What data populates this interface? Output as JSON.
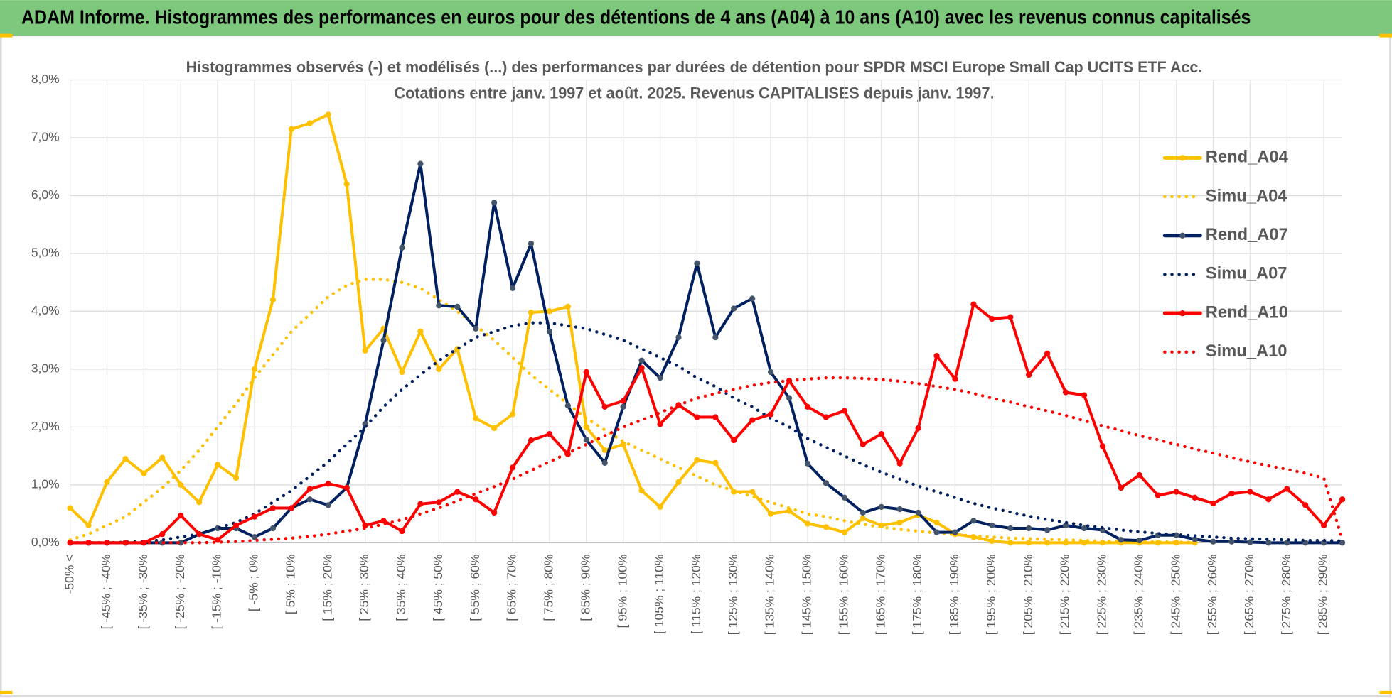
{
  "header": {
    "title": "ADAM Informe. Histogrammes des performances en euros pour des détentions de 4 ans (A04) à 10 ans (A10) avec les revenus connus capitalisés"
  },
  "chart_data": {
    "type": "line",
    "title": "Histogrammes observés (-) et modélisés (...) des performances par durées de détention pour SPDR MSCI Europe Small Cap UCITS ETF Acc.",
    "subtitle": "Cotations entre janv. 1997 et août. 2025. Revenus CAPITALISES depuis janv. 1997.",
    "categories": [
      "-50% <",
      null,
      "[ -45% ; -40%",
      null,
      "[ -35% ; -30%",
      null,
      "[ -25% ; -20%",
      null,
      "[ -15% ; -10%",
      null,
      "[ -5% ; 0%",
      null,
      "[ 5% ; 10%",
      null,
      "[ 15% ; 20%",
      null,
      "[ 25% ; 30%",
      null,
      "[ 35% ; 40%",
      null,
      "[ 45% ; 50%",
      null,
      "[ 55% ; 60%",
      null,
      "[ 65% ; 70%",
      null,
      "[ 75% ; 80%",
      null,
      "[ 85% ; 90%",
      null,
      "[ 95% ; 100%",
      null,
      "[ 105% ; 110%",
      null,
      "[ 115% ; 120%",
      null,
      "[ 125% ; 130%",
      null,
      "[ 135% ; 140%",
      null,
      "[ 145% ; 150%",
      null,
      "[ 155% ; 160%",
      null,
      "[ 165% ; 170%",
      null,
      "[ 175% ; 180%",
      null,
      "[ 185% ; 190%",
      null,
      "[ 195% ; 200%",
      null,
      "[ 205% ; 210%",
      null,
      "[ 215% ; 220%",
      null,
      "[ 225% ; 230%",
      null,
      "[ 235% ; 240%",
      null,
      "[ 245% ; 250%",
      null,
      "[ 255% ; 260%",
      null,
      "[ 265% ; 270%",
      null,
      "[ 275% ; 280%",
      null,
      "[ 285% ; 290%",
      null
    ],
    "series": [
      {
        "name": "Rend_A04",
        "color": "#ffc000",
        "marker_color": "#ffc000",
        "style": "solid",
        "values": [
          0.6,
          0.3,
          1.05,
          1.45,
          1.2,
          1.47,
          1.0,
          0.7,
          1.35,
          1.12,
          3.0,
          4.2,
          7.15,
          7.25,
          7.4,
          6.2,
          3.32,
          3.7,
          2.95,
          3.65,
          3.0,
          3.35,
          2.15,
          1.98,
          2.22,
          3.98,
          4.0,
          4.08,
          2.0,
          1.6,
          1.7,
          0.9,
          0.62,
          1.05,
          1.43,
          1.38,
          0.88,
          0.88,
          0.5,
          0.55,
          0.33,
          0.27,
          0.18,
          0.42,
          0.3,
          0.35,
          0.48,
          0.35,
          0.15,
          0.1,
          0.03,
          0,
          0,
          0,
          0,
          0,
          0,
          0,
          0,
          0,
          0,
          0,
          null,
          null,
          null,
          null,
          null,
          null,
          null,
          null
        ]
      },
      {
        "name": "Simu_A04",
        "color": "#ffc000",
        "style": "dotted",
        "values": [
          0.05,
          0.15,
          0.3,
          0.45,
          0.7,
          0.95,
          1.25,
          1.6,
          2.0,
          2.4,
          2.85,
          3.25,
          3.65,
          3.95,
          4.25,
          4.45,
          4.55,
          4.55,
          4.5,
          4.4,
          4.2,
          4.0,
          3.75,
          3.5,
          3.2,
          2.9,
          2.65,
          2.4,
          2.15,
          1.95,
          1.75,
          1.6,
          1.45,
          1.3,
          1.15,
          1.0,
          0.9,
          0.8,
          0.7,
          0.6,
          0.5,
          0.45,
          0.38,
          0.32,
          0.27,
          0.23,
          0.2,
          0.17,
          0.14,
          0.12,
          0.1,
          0.08,
          0.07,
          0.06,
          0.05,
          0.04,
          0.03,
          0.03,
          0.02,
          0.02,
          0.01,
          0.01,
          null,
          null,
          null,
          null,
          null,
          null,
          null,
          null
        ]
      },
      {
        "name": "Rend_A07",
        "color": "#002060",
        "marker_color": "#44546a",
        "style": "solid",
        "values": [
          0,
          0,
          0,
          0,
          0,
          0,
          0,
          0.15,
          0.25,
          0.25,
          0.1,
          0.25,
          0.6,
          0.75,
          0.65,
          0.95,
          2.05,
          3.5,
          5.1,
          6.55,
          4.1,
          4.08,
          3.7,
          5.88,
          4.4,
          5.17,
          3.65,
          2.37,
          1.78,
          1.38,
          2.35,
          3.15,
          2.85,
          3.55,
          4.83,
          3.55,
          4.05,
          4.22,
          2.95,
          2.5,
          1.37,
          1.03,
          0.78,
          0.52,
          0.62,
          0.58,
          0.52,
          0.18,
          0.18,
          0.38,
          0.3,
          0.25,
          0.25,
          0.22,
          0.3,
          0.25,
          0.22,
          0.05,
          0.04,
          0.13,
          0.13,
          0.06,
          0.02,
          0.02,
          0.01,
          0,
          0,
          0,
          0,
          0
        ]
      },
      {
        "name": "Simu_A07",
        "color": "#002060",
        "style": "dotted",
        "values": [
          0,
          0,
          0,
          0.01,
          0.02,
          0.05,
          0.1,
          0.15,
          0.25,
          0.35,
          0.5,
          0.7,
          0.9,
          1.15,
          1.4,
          1.7,
          2.0,
          2.35,
          2.65,
          2.9,
          3.15,
          3.35,
          3.55,
          3.65,
          3.75,
          3.8,
          3.8,
          3.75,
          3.7,
          3.6,
          3.5,
          3.35,
          3.2,
          3.05,
          2.85,
          2.7,
          2.5,
          2.35,
          2.15,
          2.0,
          1.8,
          1.65,
          1.5,
          1.35,
          1.22,
          1.1,
          0.98,
          0.88,
          0.78,
          0.68,
          0.6,
          0.53,
          0.46,
          0.4,
          0.35,
          0.3,
          0.26,
          0.22,
          0.19,
          0.16,
          0.14,
          0.12,
          0.1,
          0.08,
          0.07,
          0.06,
          0.05,
          0.04,
          0.04,
          0.03
        ]
      },
      {
        "name": "Rend_A10",
        "color": "#ff0000",
        "marker_color": "#ff0000",
        "style": "solid",
        "values": [
          0,
          0,
          0,
          0,
          0,
          0.15,
          0.47,
          0.15,
          0.05,
          0.3,
          0.45,
          0.6,
          0.6,
          0.93,
          1.02,
          0.95,
          0.3,
          0.38,
          0.2,
          0.67,
          0.7,
          0.88,
          0.75,
          0.52,
          1.3,
          1.77,
          1.88,
          1.53,
          2.95,
          2.35,
          2.45,
          3.02,
          2.05,
          2.38,
          2.17,
          2.17,
          1.77,
          2.12,
          2.22,
          2.8,
          2.35,
          2.17,
          2.28,
          1.7,
          1.88,
          1.37,
          1.98,
          3.23,
          2.83,
          4.12,
          3.87,
          3.9,
          2.9,
          3.27,
          2.6,
          2.55,
          1.67,
          0.95,
          1.17,
          0.82,
          0.88,
          0.78,
          0.68,
          0.85,
          0.88,
          0.75,
          0.93,
          0.65,
          0.3,
          0.75
        ]
      },
      {
        "name": "Simu_A10",
        "color": "#ff0000",
        "style": "dotted",
        "values": [
          0,
          0,
          0,
          0,
          0,
          0,
          0,
          0,
          0.01,
          0.02,
          0.04,
          0.06,
          0.08,
          0.11,
          0.15,
          0.2,
          0.25,
          0.32,
          0.4,
          0.5,
          0.6,
          0.72,
          0.85,
          0.97,
          1.1,
          1.25,
          1.4,
          1.55,
          1.7,
          1.85,
          2.0,
          2.12,
          2.25,
          2.38,
          2.5,
          2.58,
          2.65,
          2.72,
          2.77,
          2.8,
          2.83,
          2.85,
          2.85,
          2.84,
          2.82,
          2.79,
          2.75,
          2.7,
          2.65,
          2.58,
          2.5,
          2.43,
          2.35,
          2.28,
          2.2,
          2.11,
          2.02,
          1.94,
          1.85,
          1.78,
          1.7,
          1.62,
          1.55,
          1.47,
          1.4,
          1.33,
          1.27,
          1.2,
          1.12,
          0.05
        ]
      }
    ],
    "ylim": [
      0,
      8
    ],
    "yticks": [
      {
        "value": 0,
        "label": "0,0%"
      },
      {
        "value": 1,
        "label": "1,0%"
      },
      {
        "value": 2,
        "label": "2,0%"
      },
      {
        "value": 3,
        "label": "3,0%"
      },
      {
        "value": 4,
        "label": "4,0%"
      },
      {
        "value": 5,
        "label": "5,0%"
      },
      {
        "value": 6,
        "label": "6,0%"
      },
      {
        "value": 7,
        "label": "7,0%"
      },
      {
        "value": 8,
        "label": "8,0%"
      }
    ],
    "grid": true,
    "legend": "right"
  }
}
